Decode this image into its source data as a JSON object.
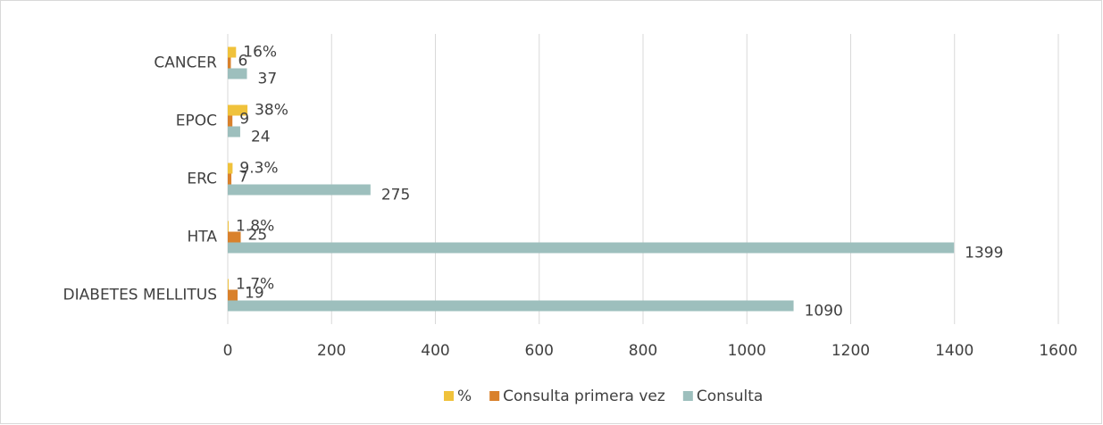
{
  "chart_data": {
    "type": "bar",
    "orientation": "horizontal",
    "categories": [
      "DIABETES MELLITUS",
      "HTA",
      "ERC",
      "EPOC",
      "CANCER"
    ],
    "series": [
      {
        "name": "%",
        "color": "#f0c23b",
        "values": [
          1.7,
          1.8,
          9.3,
          38,
          16
        ],
        "value_labels": [
          "1.7%",
          "1.8%",
          "9.3%",
          "38%",
          "16%"
        ]
      },
      {
        "name": "Consulta primera vez",
        "color": "#d9812c",
        "values": [
          19,
          25,
          7,
          9,
          6
        ]
      },
      {
        "name": "Consulta",
        "color": "#9dbfbd",
        "values": [
          1090,
          1399,
          275,
          24,
          37
        ]
      }
    ],
    "xlim": [
      0,
      1600
    ],
    "xticks": [
      0,
      200,
      400,
      600,
      800,
      1000,
      1200,
      1400,
      1600
    ],
    "grid": true,
    "legend": "bottom"
  }
}
